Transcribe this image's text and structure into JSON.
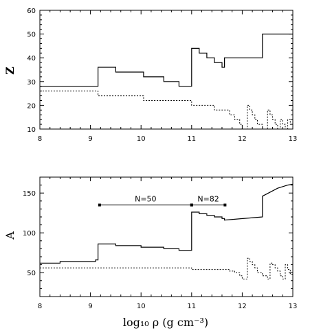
{
  "chart_data": [
    {
      "type": "line",
      "ylabel": "Z",
      "xlim": [
        8,
        13
      ],
      "ylim": [
        10,
        60
      ],
      "xticks": [
        "8",
        "9",
        "10",
        "11",
        "12",
        "13"
      ],
      "yticks": [
        "10",
        "20",
        "30",
        "40",
        "50",
        "60"
      ],
      "series": [
        {
          "style": "solid",
          "x": [
            8.0,
            9.15,
            9.15,
            9.5,
            9.5,
            10.05,
            10.05,
            10.45,
            10.45,
            10.75,
            10.75,
            11.0,
            11.0,
            11.15,
            11.15,
            11.3,
            11.3,
            11.45,
            11.45,
            11.6,
            11.6,
            11.65,
            11.65,
            12.4,
            12.4,
            13.0
          ],
          "y": [
            28,
            28,
            36,
            36,
            34,
            34,
            32,
            32,
            30,
            30,
            28,
            28,
            44,
            44,
            42,
            42,
            40,
            40,
            38,
            38,
            36,
            36,
            40,
            40,
            50,
            50
          ]
        },
        {
          "style": "dotted",
          "x": [
            8.0,
            9.15,
            9.15,
            10.05,
            10.05,
            11.0,
            11.0,
            11.45,
            11.45,
            11.75,
            11.75,
            11.85,
            11.85,
            11.95,
            11.95,
            12.0,
            12.0,
            12.1,
            12.1,
            12.15,
            12.15,
            12.2,
            12.2,
            12.25,
            12.25,
            12.3,
            12.3,
            12.4,
            12.4,
            12.5,
            12.5,
            12.55,
            12.55,
            12.6,
            12.6,
            12.65,
            12.65,
            12.7,
            12.7,
            12.75,
            12.75,
            12.8,
            12.8,
            12.85,
            12.85,
            12.9,
            12.9,
            12.95,
            12.95,
            13.0
          ],
          "y": [
            26,
            26,
            24,
            24,
            22,
            22,
            20,
            20,
            18,
            18,
            16,
            16,
            14,
            14,
            12,
            12,
            10,
            10,
            20,
            20,
            18,
            18,
            16,
            16,
            14,
            14,
            12,
            12,
            10,
            10,
            18,
            18,
            16,
            16,
            14,
            14,
            12,
            12,
            10,
            10,
            14,
            14,
            12,
            12,
            10,
            10,
            14,
            14,
            12,
            12
          ]
        }
      ]
    },
    {
      "type": "line",
      "ylabel": "A",
      "xlabel": "log₁₀ ρ   (g  cm⁻³)",
      "xlim": [
        8,
        13
      ],
      "ylim": [
        20,
        170
      ],
      "xticks": [
        "8",
        "9",
        "10",
        "11",
        "12",
        "13"
      ],
      "yticks": [
        "50",
        "100",
        "150"
      ],
      "series": [
        {
          "style": "solid",
          "x": [
            8.0,
            8.4,
            8.4,
            9.1,
            9.1,
            9.15,
            9.15,
            9.5,
            9.5,
            10.0,
            10.0,
            10.45,
            10.45,
            10.75,
            10.75,
            11.0,
            11.0,
            11.15,
            11.15,
            11.3,
            11.3,
            11.45,
            11.45,
            11.6,
            11.6,
            11.65,
            11.65,
            12.4,
            12.4,
            12.7,
            12.9,
            13.0
          ],
          "y": [
            62,
            62,
            64,
            64,
            66,
            66,
            86,
            86,
            84,
            84,
            82,
            82,
            80,
            80,
            78,
            78,
            126,
            126,
            124,
            124,
            122,
            122,
            120,
            120,
            118,
            118,
            116,
            120,
            146,
            156,
            160,
            161
          ]
        },
        {
          "style": "dotted",
          "x": [
            8.0,
            11.0,
            11.0,
            11.75,
            11.75,
            11.85,
            11.85,
            11.95,
            11.95,
            12.0,
            12.0,
            12.1,
            12.1,
            12.15,
            12.15,
            12.2,
            12.2,
            12.25,
            12.25,
            12.3,
            12.3,
            12.4,
            12.4,
            12.5,
            12.5,
            12.55,
            12.55,
            12.6,
            12.6,
            12.65,
            12.65,
            12.7,
            12.7,
            12.75,
            12.75,
            12.8,
            12.8,
            12.85,
            12.85,
            12.9,
            12.9,
            12.95,
            12.95,
            13.0
          ],
          "y": [
            56,
            56,
            54,
            54,
            52,
            52,
            50,
            50,
            46,
            46,
            42,
            42,
            68,
            68,
            64,
            64,
            60,
            60,
            56,
            56,
            50,
            50,
            46,
            46,
            42,
            42,
            62,
            62,
            60,
            60,
            56,
            56,
            52,
            52,
            46,
            46,
            42,
            42,
            60,
            60,
            54,
            54,
            48,
            48
          ]
        }
      ],
      "annotations": [
        {
          "label": "N=50",
          "x_start": 9.18,
          "x_end": 11.0,
          "y": 135
        },
        {
          "label": "N=82",
          "x_start": 11.0,
          "x_end": 11.66,
          "y": 135
        }
      ]
    }
  ]
}
